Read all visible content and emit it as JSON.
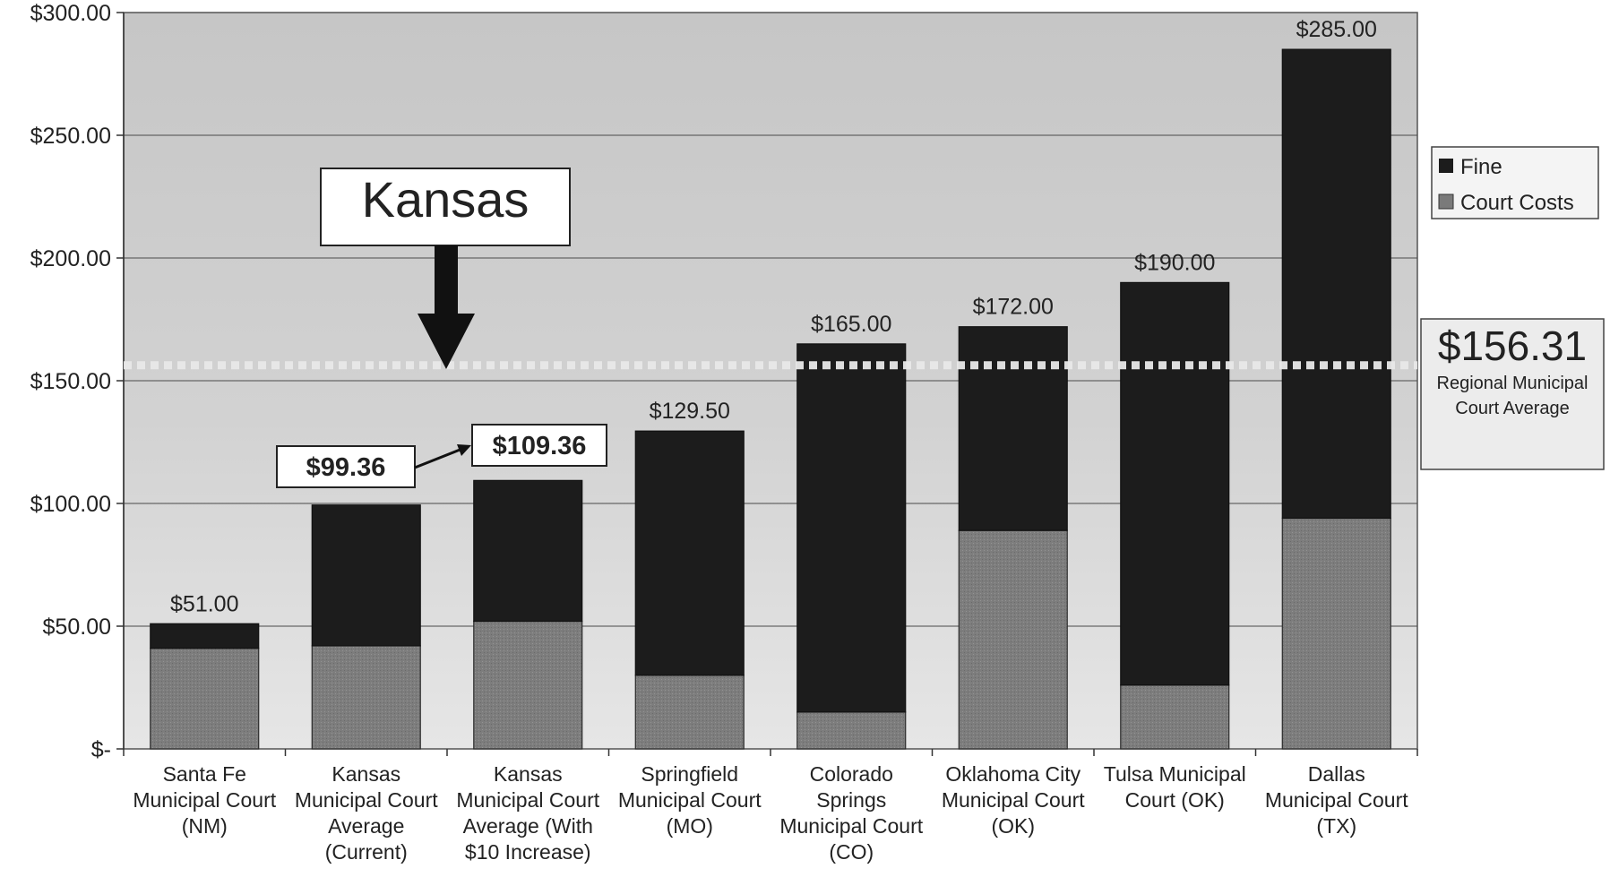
{
  "chart_data": {
    "type": "bar",
    "stacked": true,
    "categories": [
      [
        "Santa Fe",
        "Municipal Court",
        "(NM)"
      ],
      [
        "Kansas",
        "Municipal Court",
        "Average",
        "(Current)"
      ],
      [
        "Kansas",
        "Municipal Court",
        "Average (With",
        "$10 Increase)"
      ],
      [
        "Springfield",
        "Municipal Court",
        "(MO)"
      ],
      [
        "Colorado",
        "Springs",
        "Municipal Court",
        "(CO)"
      ],
      [
        "Oklahoma City",
        "Municipal Court",
        "(OK)"
      ],
      [
        "Tulsa Municipal",
        "Court (OK)"
      ],
      [
        "Dallas",
        "Municipal Court",
        "(TX)"
      ]
    ],
    "series": [
      {
        "name": "Court Costs",
        "color": "#7a7a7a",
        "values": [
          41,
          42,
          52,
          30,
          15,
          89,
          26,
          94
        ]
      },
      {
        "name": "Fine",
        "color": "#1c1c1c",
        "values": [
          10,
          57.36,
          57.36,
          99.5,
          150,
          83,
          164,
          191
        ]
      }
    ],
    "totals_labels": [
      "$51.00",
      "",
      "",
      "$129.50",
      "$165.00",
      "$172.00",
      "$190.00",
      "$285.00"
    ],
    "ylim": [
      0,
      300
    ],
    "yticks": [
      {
        "value": 0,
        "label": "$-"
      },
      {
        "value": 50,
        "label": "$50.00"
      },
      {
        "value": 100,
        "label": "$100.00"
      },
      {
        "value": 150,
        "label": "$150.00"
      },
      {
        "value": 200,
        "label": "$200.00"
      },
      {
        "value": 250,
        "label": "$250.00"
      },
      {
        "value": 300,
        "label": "$300.00"
      }
    ],
    "grid": true,
    "legend_position": "right",
    "reference_line": {
      "value": 156.31,
      "label_value": "$156.31",
      "label_lines": [
        "Regional Municipal",
        "Court Average"
      ]
    },
    "annotations": {
      "state_callout": "Kansas",
      "current_value": "$99.36",
      "increased_value": "$109.36"
    },
    "colors": {
      "plot_background": "#cfcfcf",
      "fine": "#1c1c1c",
      "court_costs": "#7a7a7a",
      "reference_line": "#f2f2f2"
    }
  }
}
